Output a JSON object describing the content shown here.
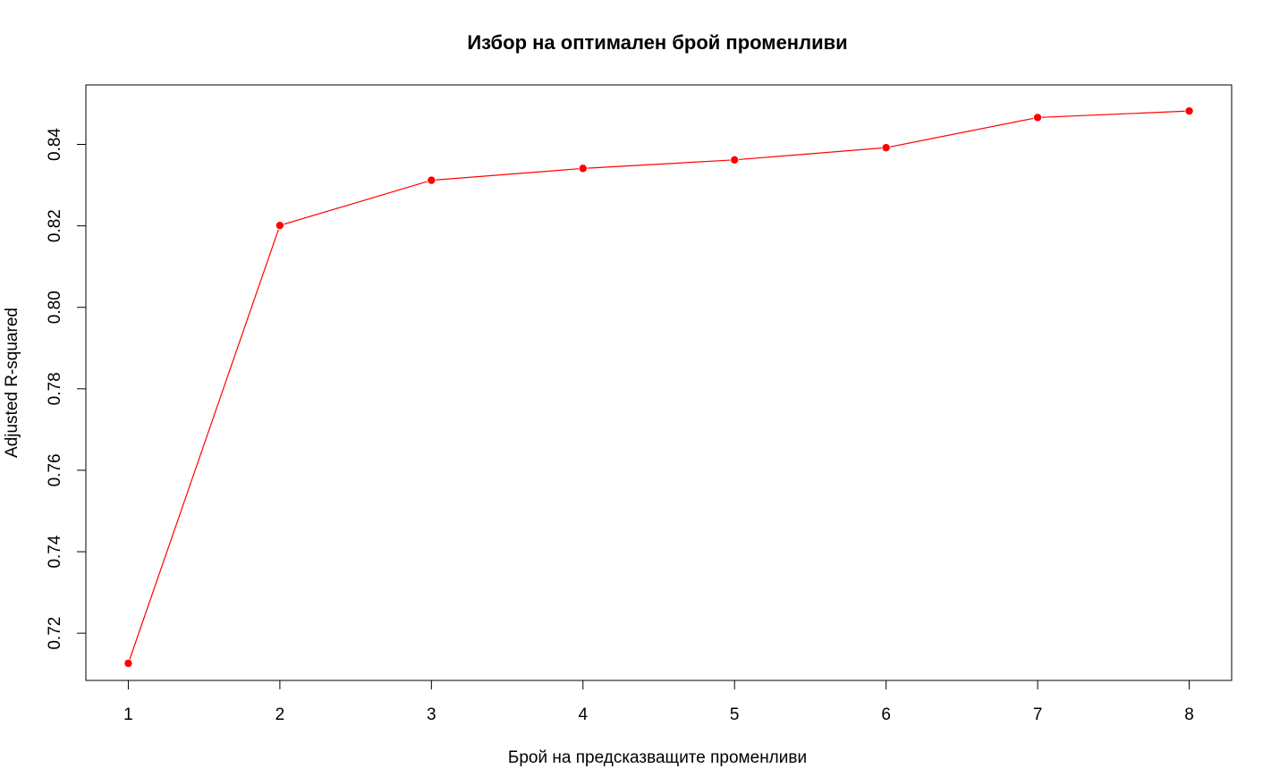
{
  "chart_data": {
    "type": "line",
    "title": "Избор на оптимален брой променливи",
    "xlabel": "Брой на предсказващите променливи",
    "ylabel": "Adjusted R-squared",
    "x": [
      1,
      2,
      3,
      4,
      5,
      6,
      7,
      8
    ],
    "x_ticks": [
      "1",
      "2",
      "3",
      "4",
      "5",
      "6",
      "7",
      "8"
    ],
    "y_ticks": [
      "0.72",
      "0.74",
      "0.76",
      "0.78",
      "0.80",
      "0.82",
      "0.84"
    ],
    "xlim": [
      0.72,
      8.28
    ],
    "ylim": [
      0.7084,
      0.8546
    ],
    "grid": false,
    "series": [
      {
        "values": [
          0.7126,
          0.8201,
          0.8312,
          0.8341,
          0.8362,
          0.8392,
          0.8466,
          0.8482
        ],
        "color": "#ff0000"
      }
    ]
  }
}
